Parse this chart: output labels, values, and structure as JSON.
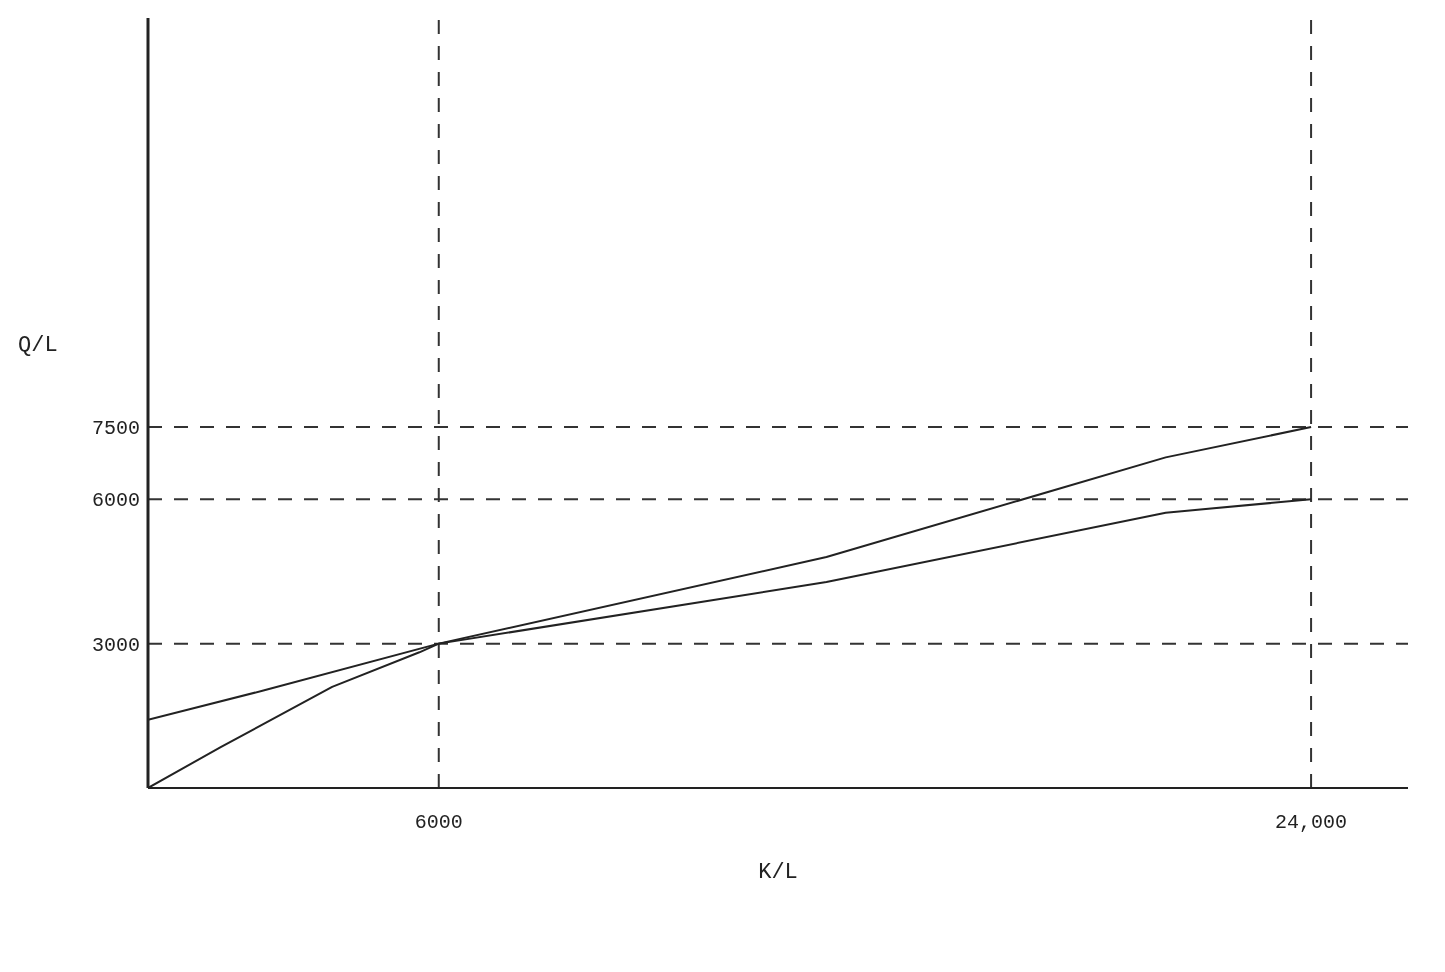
{
  "chart_data": {
    "type": "line",
    "xlabel": "K/L",
    "ylabel": "Q/L",
    "series": [
      {
        "color": "#222222",
        "x": [
          0,
          1500,
          3800,
          5600,
          6000,
          14000,
          21000,
          24000
        ],
        "values": [
          0,
          850,
          2100,
          2820,
          3000,
          4800,
          6870,
          7500
        ]
      },
      {
        "color": "#222222",
        "x": [
          0,
          2400,
          6000,
          14000,
          21000,
          24000
        ],
        "values": [
          1420,
          2030,
          3000,
          4280,
          5720,
          6000
        ]
      }
    ],
    "xlim": [
      0,
      26000
    ],
    "xticks": [
      6000,
      {
        "value": 24000,
        "label": "24,000"
      }
    ],
    "ylim": [
      0,
      16000
    ],
    "yticks": [
      3000,
      6000,
      7500
    ],
    "ref_lines": [
      {
        "axis": "y",
        "value": 7500,
        "line_style": "dashed",
        "color": "#333333"
      },
      {
        "axis": "y",
        "value": 6000,
        "line_style": "dashed",
        "color": "#333333"
      },
      {
        "axis": "y",
        "value": 3000,
        "line_style": "dashed",
        "color": "#333333"
      },
      {
        "axis": "x",
        "value": 6000,
        "line_style": "dashed",
        "color": "#333333"
      },
      {
        "axis": "x",
        "value": 24000,
        "line_style": "dashed",
        "color": "#333333"
      }
    ],
    "grid": false,
    "marker": "none",
    "line_style": "solid"
  }
}
